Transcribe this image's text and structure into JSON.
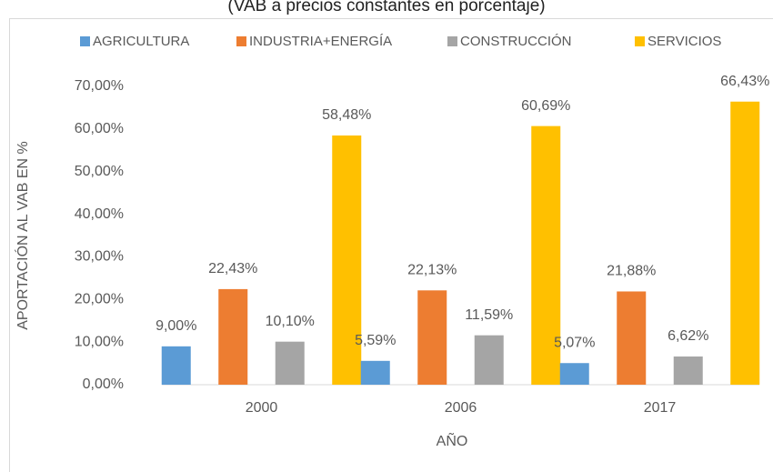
{
  "chart_data": {
    "type": "bar",
    "title": "(VAB a precios constantes en porcentaje)",
    "x_label": "AÑO",
    "y_label": "APORTACIÓN AL VAB EN %",
    "categories": [
      "2000",
      "2006",
      "2017"
    ],
    "series": [
      {
        "name": "AGRICULTURA",
        "color": "#5b9bd5",
        "values": [
          9.0,
          5.59,
          5.07
        ],
        "value_labels": [
          "9,00%",
          "5,59%",
          "5,07%"
        ]
      },
      {
        "name": "INDUSTRIA+ENERGÍA",
        "color": "#ed7d31",
        "values": [
          22.43,
          22.13,
          21.88
        ],
        "value_labels": [
          "22,43%",
          "22,13%",
          "21,88%"
        ]
      },
      {
        "name": "CONSTRUCCIÓN",
        "color": "#a5a5a5",
        "values": [
          10.1,
          11.59,
          6.62
        ],
        "value_labels": [
          "10,10%",
          "11,59%",
          "6,62%"
        ]
      },
      {
        "name": "SERVICIOS",
        "color": "#ffc000",
        "values": [
          58.48,
          60.69,
          66.43
        ],
        "value_labels": [
          "58,48%",
          "60,69%",
          "66,43%"
        ]
      }
    ],
    "ylim": [
      0,
      70
    ],
    "yticks": [
      {
        "value": 0,
        "label": "0,00%"
      },
      {
        "value": 10,
        "label": "10,00%"
      },
      {
        "value": 20,
        "label": "20,00%"
      },
      {
        "value": 30,
        "label": "30,00%"
      },
      {
        "value": 40,
        "label": "40,00%"
      },
      {
        "value": 50,
        "label": "50,00%"
      },
      {
        "value": 60,
        "label": "60,00%"
      },
      {
        "value": 70,
        "label": "70,00%"
      }
    ],
    "legend": "top"
  }
}
